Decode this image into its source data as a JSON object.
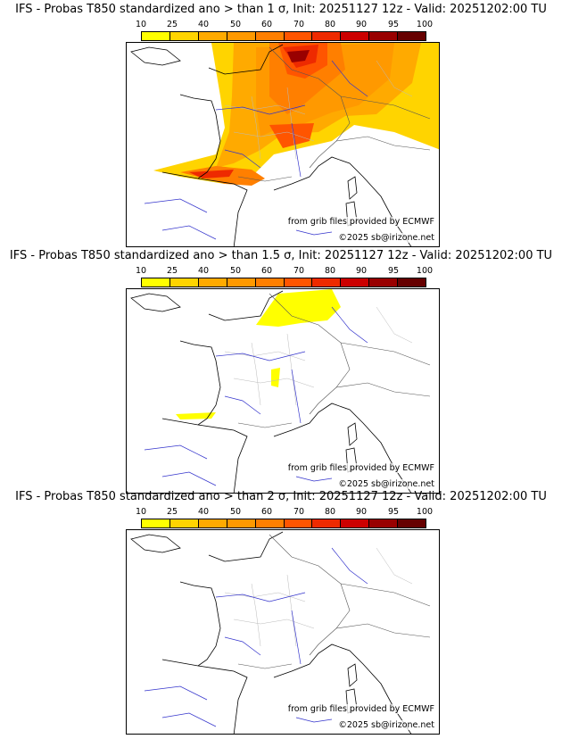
{
  "colorbar": {
    "labels": [
      "10",
      "25",
      "40",
      "50",
      "60",
      "70",
      "80",
      "90",
      "95",
      "100"
    ],
    "colors": [
      "#ffff00",
      "#ffd400",
      "#ffaa00",
      "#ff9900",
      "#ff7f00",
      "#ff5500",
      "#ee2a00",
      "#cc0000",
      "#990000",
      "#660000"
    ]
  },
  "credits": {
    "source": "from grib files provided by ECMWF",
    "copyright": "©2025 sb@irizone.net"
  },
  "panels": [
    {
      "title": "IFS - Probas T850  standardized ano > than 1 σ, Init: 20251127 12z - Valid: 20251202:00 TU"
    },
    {
      "title": "IFS - Probas T850  standardized ano > than 1.5 σ, Init: 20251127 12z - Valid: 20251202:00 TU"
    },
    {
      "title": "IFS - Probas T850  standardized ano > than 2 σ, Init: 20251127 12z - Valid: 20251202:00 TU"
    }
  ]
}
